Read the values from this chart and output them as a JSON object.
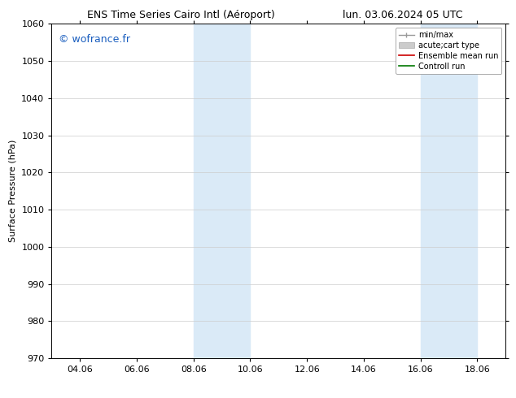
{
  "title_left": "ENS Time Series Cairo Intl (Aéroport)",
  "title_right": "lun. 03.06.2024 05 UTC",
  "ylabel": "Surface Pressure (hPa)",
  "ylim": [
    970,
    1060
  ],
  "yticks": [
    970,
    980,
    990,
    1000,
    1010,
    1020,
    1030,
    1040,
    1050,
    1060
  ],
  "xtick_labels": [
    "04.06",
    "06.06",
    "08.06",
    "10.06",
    "12.06",
    "14.06",
    "16.06",
    "18.06"
  ],
  "xtick_positions": [
    1,
    3,
    5,
    7,
    9,
    11,
    13,
    15
  ],
  "xlim": [
    0,
    16
  ],
  "shaded_regions": [
    {
      "xmin": 5,
      "xmax": 7
    },
    {
      "xmin": 13,
      "xmax": 15
    }
  ],
  "shaded_color": "#daeaf7",
  "watermark_text": "© wofrance.fr",
  "watermark_color": "#1a5ebf",
  "watermark_fontsize": 9,
  "bg_color": "#ffffff",
  "plot_bg_color": "#ffffff",
  "title_fontsize": 9,
  "axis_fontsize": 8,
  "tick_fontsize": 8,
  "legend_fontsize": 7
}
